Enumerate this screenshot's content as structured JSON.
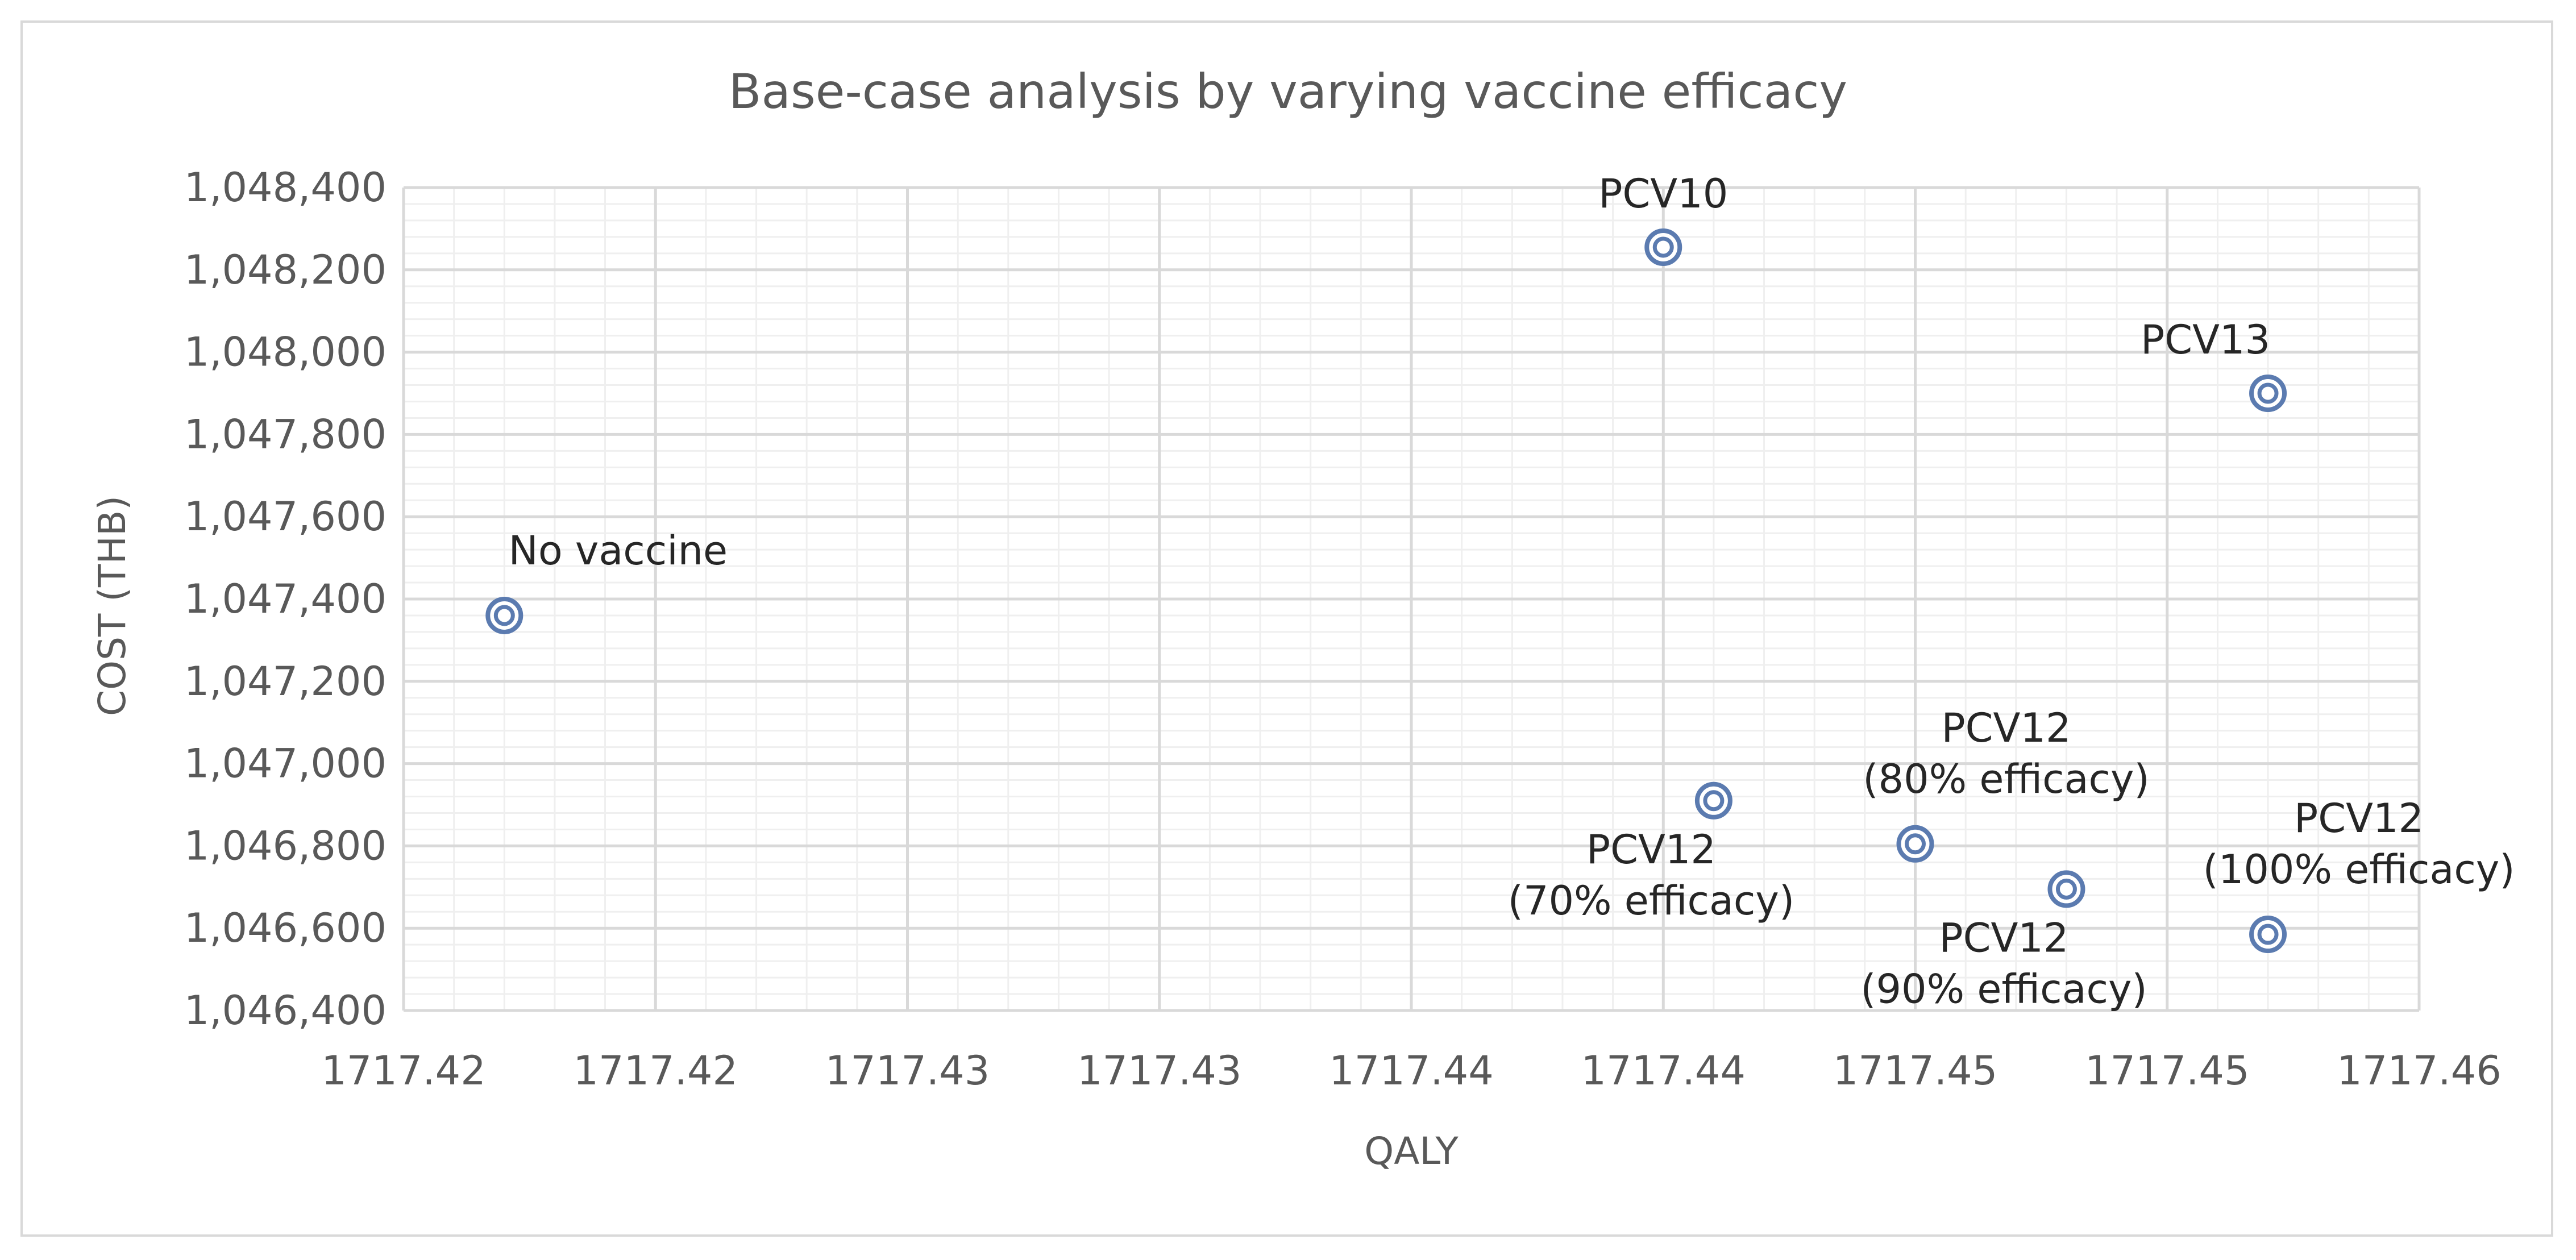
{
  "chart_data": {
    "type": "scatter",
    "title": "Base-case analysis by varying vaccine efficacy",
    "xlabel": "QALY",
    "ylabel": "COST (THB)",
    "xlim": [
      1717.4175,
      1717.4575
    ],
    "ylim": [
      1046400,
      1048400
    ],
    "x_major_step": 0.005,
    "y_major_step": 200,
    "x_minor_divisions": 5,
    "y_minor_divisions": 5,
    "grid": true,
    "x_tick_labels": [
      "1717.42",
      "1717.42",
      "1717.43",
      "1717.43",
      "1717.44",
      "1717.44",
      "1717.45",
      "1717.45",
      "1717.46"
    ],
    "y_tick_labels": [
      "1,046,400",
      "1,046,600",
      "1,046,800",
      "1,047,000",
      "1,047,200",
      "1,047,400",
      "1,047,600",
      "1,047,800",
      "1,048,000",
      "1,048,200",
      "1,048,400"
    ],
    "marker_color": "#5b7bb0",
    "points": [
      {
        "name": "No vaccine",
        "x": 1717.4195,
        "y": 1047360,
        "label": [
          "No vaccine"
        ],
        "label_pos": "above-right"
      },
      {
        "name": "PCV10",
        "x": 1717.4425,
        "y": 1048255,
        "label": [
          "PCV10"
        ],
        "label_pos": "above"
      },
      {
        "name": "PCV13",
        "x": 1717.4545,
        "y": 1047900,
        "label": [
          "PCV13"
        ],
        "label_pos": "above-left"
      },
      {
        "name": "PCV12 (70% efficacy)",
        "x": 1717.4435,
        "y": 1046910,
        "label": [
          "PCV12",
          "(70% efficacy)"
        ],
        "label_pos": "below-left"
      },
      {
        "name": "PCV12 (80% efficacy)",
        "x": 1717.4475,
        "y": 1046805,
        "label": [
          "PCV12",
          "(80% efficacy)"
        ],
        "label_pos": "above-right"
      },
      {
        "name": "PCV12 (90% efficacy)",
        "x": 1717.4505,
        "y": 1046695,
        "label": [
          "PCV12",
          "(90% efficacy)"
        ],
        "label_pos": "below-left"
      },
      {
        "name": "PCV12 (100% efficacy)",
        "x": 1717.4545,
        "y": 1046585,
        "label": [
          "PCV12",
          "(100% efficacy)"
        ],
        "label_pos": "above-right"
      }
    ]
  }
}
